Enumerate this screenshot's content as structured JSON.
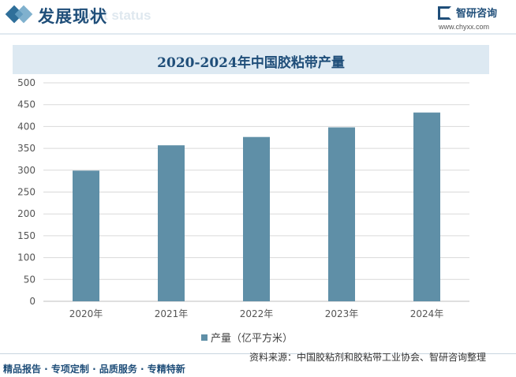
{
  "header": {
    "title": "发展现状",
    "subtitle_watermark": "ment status",
    "logo_name": "智研咨询",
    "logo_url": "www.chyxx.com"
  },
  "chart_data": {
    "type": "bar",
    "title": "2020-2024年中国胶粘带产量",
    "categories": [
      "2020年",
      "2021年",
      "2022年",
      "2023年",
      "2024年"
    ],
    "series": [
      {
        "name": "产量（亿平方米）",
        "values": [
          299,
          357,
          376,
          398,
          432
        ],
        "color": "#5f8fa7"
      }
    ],
    "ylim": [
      0,
      500
    ],
    "yticks": [
      0,
      50,
      100,
      150,
      200,
      250,
      300,
      350,
      400,
      450,
      500
    ],
    "grid": true,
    "legend": "bottom"
  },
  "footer": {
    "source": "资料来源：中国胶粘剂和胶粘带工业协会、智研咨询整理",
    "slogan": "精品报告 · 专项定制 · 品质服务 · 专精特新"
  }
}
